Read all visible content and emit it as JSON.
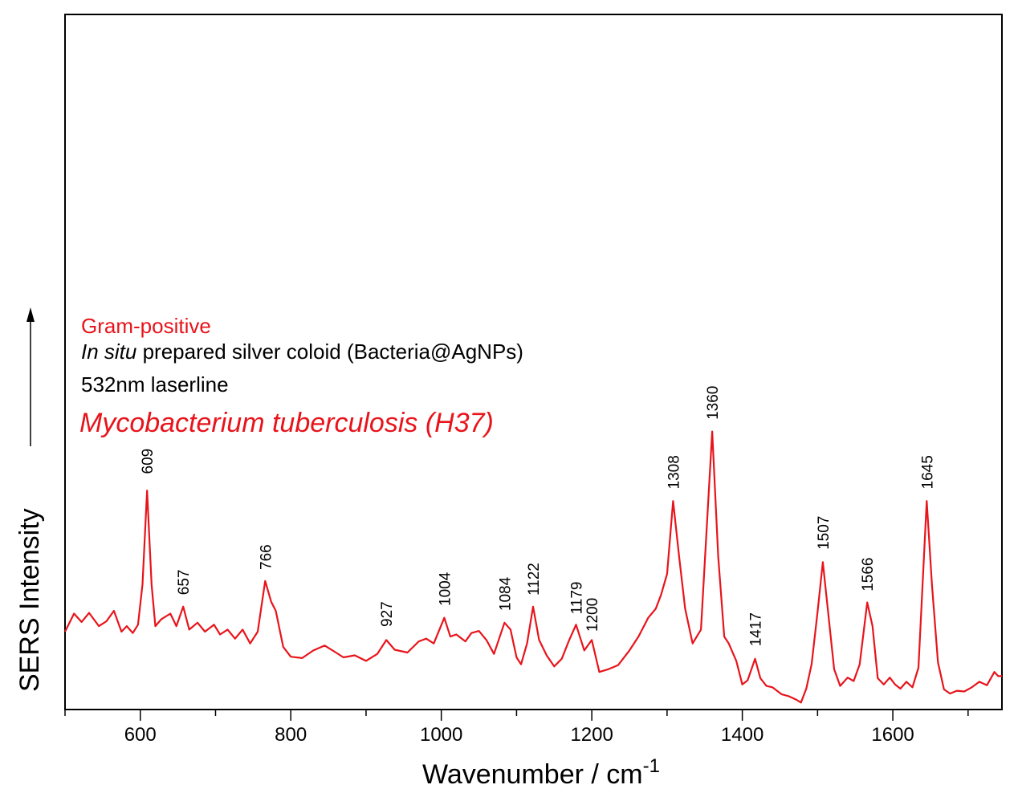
{
  "chart_data": {
    "type": "line",
    "xlabel": "Wavenumber / cm",
    "xlabel_sup": "-1",
    "ylabel": "SERS Intensity",
    "xlim": [
      500,
      1745
    ],
    "ylim": [
      0,
      100
    ],
    "x_ticks": [
      600,
      800,
      1000,
      1200,
      1400,
      1600
    ],
    "x_tick_labels": [
      "600",
      "800",
      "1000",
      "1200",
      "1400",
      "1600"
    ],
    "grid": false,
    "y_axis_arrow": true,
    "line_color": "#e8141b",
    "annotations": [
      {
        "text": "Gram-positive",
        "color": "#e8141b",
        "italic": false
      },
      {
        "text_italic": "In situ",
        "text": " prepared silver coloid (Bacteria@AgNPs)",
        "color": "#000000"
      },
      {
        "text": "532nm laserline",
        "color": "#000000",
        "italic": false
      },
      {
        "text": "Mycobacterium tuberculosis (H37)",
        "color": "#e8141b",
        "italic": true
      }
    ],
    "peak_labels": [
      {
        "text": "609",
        "x": 609,
        "y": 33.2
      },
      {
        "text": "657",
        "x": 657,
        "y": 15.8
      },
      {
        "text": "766",
        "x": 766,
        "y": 19.4
      },
      {
        "text": "927",
        "x": 927,
        "y": 11.2
      },
      {
        "text": "1004",
        "x": 1004,
        "y": 14.2
      },
      {
        "text": "1084",
        "x": 1084,
        "y": 13.5
      },
      {
        "text": "1122",
        "x": 1122,
        "y": 15.7
      },
      {
        "text": "1179",
        "x": 1179,
        "y": 13.0
      },
      {
        "text": "1200",
        "x": 1200,
        "y": 10.5
      },
      {
        "text": "1308",
        "x": 1308,
        "y": 31.0
      },
      {
        "text": "1360",
        "x": 1360,
        "y": 41.0
      },
      {
        "text": "1417",
        "x": 1417,
        "y": 8.4
      },
      {
        "text": "1507",
        "x": 1507,
        "y": 22.3
      },
      {
        "text": "1566",
        "x": 1566,
        "y": 16.3
      },
      {
        "text": "1645",
        "x": 1645,
        "y": 31.0
      }
    ],
    "series": [
      {
        "x": [
          500,
          512,
          522,
          532,
          545,
          555,
          565,
          575,
          582,
          590,
          597,
          603,
          609,
          615,
          620,
          628,
          640,
          648,
          657,
          665,
          676,
          686,
          698,
          706,
          716,
          726,
          736,
          746,
          756,
          766,
          774,
          780,
          790,
          800,
          815,
          830,
          845,
          860,
          870,
          885,
          900,
          915,
          927,
          938,
          955,
          970,
          980,
          990,
          1004,
          1012,
          1020,
          1032,
          1040,
          1050,
          1060,
          1070,
          1084,
          1092,
          1100,
          1106,
          1114,
          1122,
          1130,
          1140,
          1150,
          1160,
          1170,
          1179,
          1190,
          1200,
          1210,
          1222,
          1235,
          1250,
          1262,
          1275,
          1285,
          1292,
          1300,
          1308,
          1316,
          1324,
          1334,
          1345,
          1360,
          1368,
          1376,
          1382,
          1392,
          1400,
          1407,
          1417,
          1424,
          1432,
          1440,
          1452,
          1462,
          1472,
          1478,
          1485,
          1492,
          1500,
          1507,
          1514,
          1522,
          1530,
          1540,
          1548,
          1556,
          1566,
          1573,
          1580,
          1588,
          1596,
          1603,
          1610,
          1618,
          1626,
          1634,
          1645,
          1652,
          1660,
          1668,
          1676,
          1685,
          1695,
          1705,
          1715,
          1725,
          1735,
          1740,
          1745
        ],
        "y": [
          11.2,
          13.8,
          12.6,
          13.9,
          12.0,
          12.7,
          14.2,
          11.2,
          12.0,
          11.0,
          12.2,
          18.0,
          31.5,
          18.0,
          12.0,
          13.0,
          13.8,
          12.0,
          14.8,
          11.5,
          12.5,
          11.2,
          12.2,
          10.8,
          11.5,
          10.2,
          11.5,
          9.5,
          11.2,
          18.5,
          15.5,
          14.2,
          9.0,
          7.6,
          7.4,
          8.5,
          9.2,
          8.2,
          7.5,
          7.8,
          7.0,
          8.0,
          10.0,
          8.6,
          8.2,
          9.8,
          10.2,
          9.5,
          13.2,
          10.5,
          10.8,
          9.8,
          11.0,
          11.3,
          10.0,
          8.0,
          12.5,
          11.5,
          7.5,
          6.5,
          9.5,
          14.8,
          10.0,
          7.8,
          6.2,
          7.3,
          10.0,
          12.2,
          8.5,
          10.0,
          5.4,
          5.8,
          6.4,
          8.5,
          10.5,
          13.2,
          14.5,
          16.5,
          19.5,
          30.0,
          22.0,
          14.5,
          9.5,
          11.5,
          40.0,
          22.0,
          10.5,
          9.5,
          7.0,
          3.6,
          4.2,
          7.3,
          4.5,
          3.4,
          3.2,
          2.2,
          1.9,
          1.4,
          1.0,
          3.0,
          6.5,
          14.0,
          21.2,
          14.0,
          5.8,
          3.4,
          4.6,
          4.1,
          6.5,
          15.4,
          12.0,
          4.5,
          3.6,
          4.6,
          3.6,
          3.0,
          4.0,
          3.2,
          6.0,
          30.0,
          18.0,
          6.8,
          2.9,
          2.3,
          2.7,
          2.6,
          3.2,
          4.0,
          3.5,
          5.4,
          4.8,
          4.8
        ]
      }
    ]
  }
}
